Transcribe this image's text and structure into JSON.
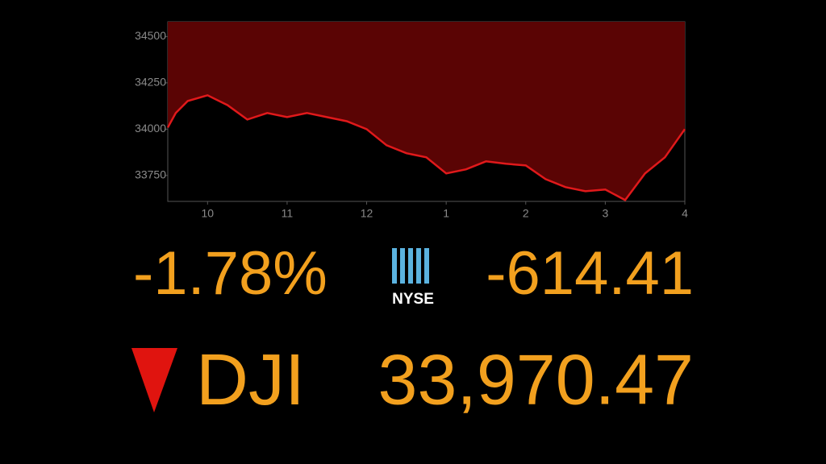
{
  "chart_data": {
    "type": "area",
    "x": [
      9.5,
      9.6,
      9.75,
      10,
      10.25,
      10.5,
      10.75,
      11,
      11.25,
      11.5,
      11.75,
      12,
      12.25,
      12.5,
      12.75,
      13,
      13.25,
      13.5,
      13.75,
      14,
      14.25,
      14.5,
      14.75,
      15,
      15.25,
      15.5,
      15.75,
      16
    ],
    "values": [
      34009,
      34087,
      34152,
      34183,
      34130,
      34052,
      34087,
      34065,
      34087,
      34065,
      34043,
      34000,
      33913,
      33870,
      33848,
      33761,
      33783,
      33826,
      33813,
      33804,
      33730,
      33687,
      33665,
      33674,
      33617,
      33761,
      33848,
      34000
    ],
    "color": "#e0191b",
    "area_color": "#5a0404",
    "xlim": [
      9.5,
      16
    ],
    "xticks": [
      10,
      11,
      12,
      {
        "value": 13,
        "label": "1"
      },
      {
        "value": 14,
        "label": "2"
      },
      {
        "value": 15,
        "label": "3"
      },
      {
        "value": 16,
        "label": "4"
      }
    ],
    "ylim": [
      33610,
      34580
    ],
    "yticks": [
      33750,
      34000,
      34250,
      34500
    ],
    "percent_change": "-1.78%",
    "exchange": "NYSE",
    "point_change": "-614.41",
    "index_name": "DJI",
    "index_value": "33,970.47"
  }
}
